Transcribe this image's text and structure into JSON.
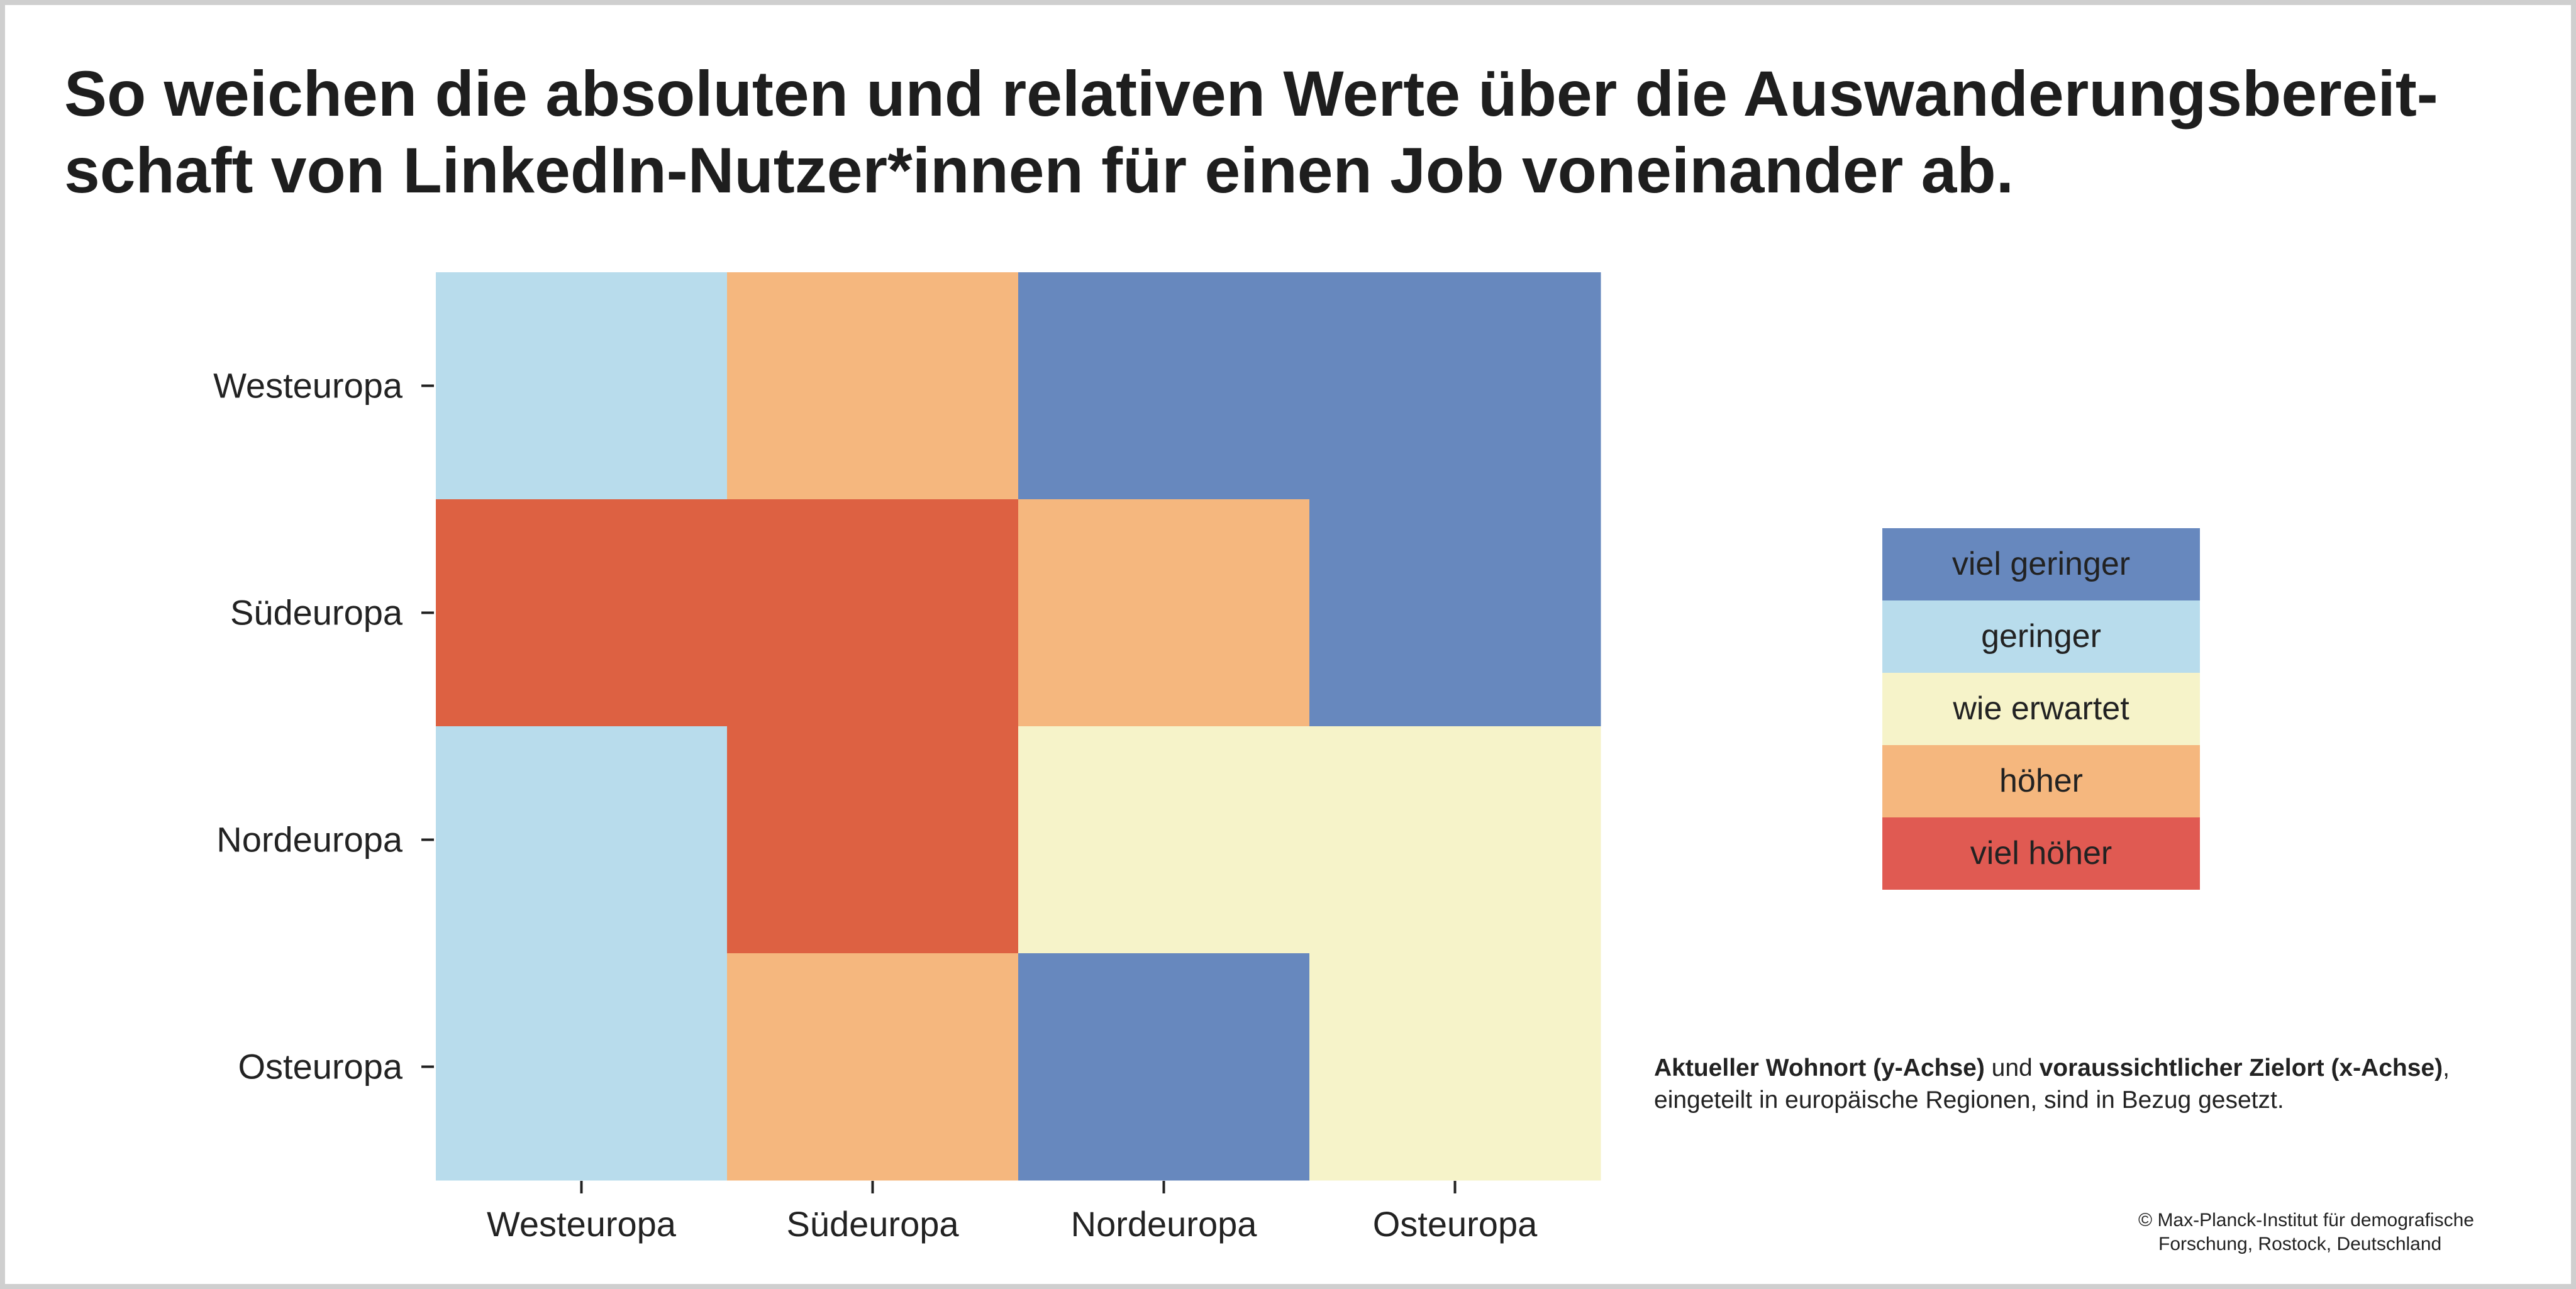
{
  "title": {
    "line1": "So weichen die absoluten und relativen Werte über die Auswanderungsbereit-",
    "line2": "schaft von LinkedIn-Nutzer*innen für einen Job voneinander ab."
  },
  "colors": {
    "viel geringer": "#6788be",
    "geringer": "#b8dcec",
    "wie erwartet": "#f6f3c9",
    "höher": "#f5b77e",
    "viel höher": "#dd6142",
    "legend_viel_hoeher": "#e05a52"
  },
  "chart_data": {
    "type": "heatmap",
    "title": "So weichen die absoluten und relativen Werte über die Auswanderungsbereitschaft von LinkedIn-Nutzer*innen für einen Job voneinander ab.",
    "x_categories": [
      "Westeuropa",
      "Südeuropa",
      "Nordeuropa",
      "Osteuropa"
    ],
    "y_categories": [
      "Westeuropa",
      "Südeuropa",
      "Nordeuropa",
      "Osteuropa"
    ],
    "xlabel": "voraussichtlicher Zielort (x-Achse)",
    "ylabel": "Aktueller Wohnort (y-Achse)",
    "levels": [
      "viel geringer",
      "geringer",
      "wie erwartet",
      "höher",
      "viel höher"
    ],
    "cells": [
      [
        "geringer",
        "höher",
        "viel geringer",
        "viel geringer"
      ],
      [
        "viel höher",
        "viel höher",
        "höher",
        "viel geringer"
      ],
      [
        "geringer",
        "viel höher",
        "wie erwartet",
        "wie erwartet"
      ],
      [
        "geringer",
        "höher",
        "viel geringer",
        "wie erwartet"
      ]
    ],
    "legend_placement": "right",
    "grid": false
  },
  "caption": {
    "bold1": "Aktueller Wohnort (y-Achse)",
    "mid": " und ",
    "bold2": "voraussichtlicher Zielort (x-Achse)",
    "end": ",",
    "line2": "eingeteilt in europäische Regionen, sind in Bezug gesetzt."
  },
  "credit": {
    "line1": "© Max-Planck-Institut für demografische",
    "line2": "Forschung, Rostock, Deutschland"
  }
}
